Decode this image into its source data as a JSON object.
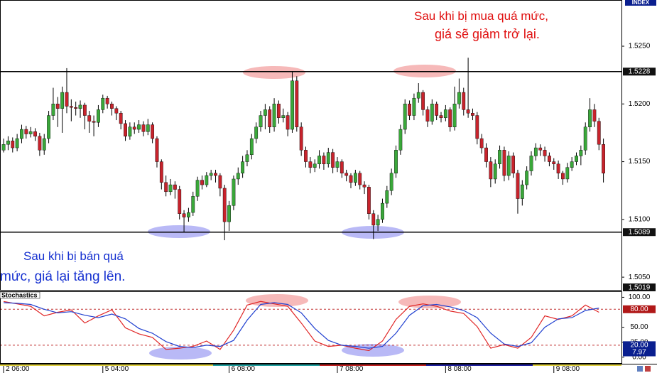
{
  "chart_data": [
    {
      "type": "candlestick",
      "index_label": "INDEX",
      "annotations": [
        "Sau khi bị mua quá mức,",
        "giá sẽ giảm trở lại.",
        "Sau khi bị bán quá",
        "mức, giá lại tăng lên."
      ],
      "up_color": "#3aa83a",
      "down_color": "#c8232c",
      "ylim": [
        1.5039,
        1.529
      ],
      "xlim": [
        -0.8,
        137
      ],
      "yticks": [
        {
          "value": 1.525,
          "label": "1.5250"
        },
        {
          "value": 1.52,
          "label": "1.5200"
        },
        {
          "value": 1.515,
          "label": "1.5150"
        },
        {
          "value": 1.51,
          "label": "1.5100"
        },
        {
          "value": 1.505,
          "label": "1.5050"
        }
      ],
      "levels": [
        1.5228,
        1.5089
      ],
      "current_price_label": "1.5019",
      "xticks": [
        {
          "value": 0,
          "label": "2 06:00"
        },
        {
          "value": 22,
          "label": "5 04:00"
        },
        {
          "value": 50,
          "label": "6 08:00"
        },
        {
          "value": 74,
          "label": "7 08:00"
        },
        {
          "value": 98,
          "label": "8 08:00"
        },
        {
          "value": 122,
          "label": "9 08:00"
        }
      ],
      "ohlc": [
        [
          1.516,
          1.517,
          1.5158,
          1.5165
        ],
        [
          1.5165,
          1.5172,
          1.516,
          1.5168
        ],
        [
          1.5168,
          1.5171,
          1.5158,
          1.5162
        ],
        [
          1.5162,
          1.5174,
          1.5159,
          1.517
        ],
        [
          1.517,
          1.5182,
          1.5166,
          1.5178
        ],
        [
          1.5178,
          1.5181,
          1.517,
          1.5174
        ],
        [
          1.5174,
          1.518,
          1.5171,
          1.5176
        ],
        [
          1.5176,
          1.5179,
          1.5168,
          1.5172
        ],
        [
          1.5172,
          1.5175,
          1.5155,
          1.516
        ],
        [
          1.516,
          1.5174,
          1.5156,
          1.517
        ],
        [
          1.517,
          1.5194,
          1.5166,
          1.519
        ],
        [
          1.519,
          1.5214,
          1.5186,
          1.52
        ],
        [
          1.52,
          1.5206,
          1.518,
          1.5196
        ],
        [
          1.5196,
          1.5215,
          1.5175,
          1.521
        ],
        [
          1.521,
          1.5231,
          1.5192,
          1.5198
        ],
        [
          1.5198,
          1.5204,
          1.5185,
          1.5197
        ],
        [
          1.5197,
          1.5202,
          1.519,
          1.5196
        ],
        [
          1.5196,
          1.5203,
          1.5188,
          1.5199
        ],
        [
          1.5199,
          1.5201,
          1.5178,
          1.519
        ],
        [
          1.519,
          1.5194,
          1.5175,
          1.5185
        ],
        [
          1.5185,
          1.519,
          1.5172,
          1.5184
        ],
        [
          1.5184,
          1.5199,
          1.518,
          1.5195
        ],
        [
          1.5195,
          1.5208,
          1.5192,
          1.5205
        ],
        [
          1.5205,
          1.5207,
          1.5196,
          1.52
        ],
        [
          1.52,
          1.5202,
          1.519,
          1.5196
        ],
        [
          1.5196,
          1.5198,
          1.5186,
          1.5192
        ],
        [
          1.5192,
          1.5194,
          1.5178,
          1.5183
        ],
        [
          1.5183,
          1.5186,
          1.5168,
          1.5172
        ],
        [
          1.5172,
          1.5184,
          1.5169,
          1.518
        ],
        [
          1.518,
          1.5184,
          1.5174,
          1.5178
        ],
        [
          1.5178,
          1.5186,
          1.5175,
          1.5182
        ],
        [
          1.5182,
          1.5185,
          1.5172,
          1.5176
        ],
        [
          1.5176,
          1.5187,
          1.5173,
          1.5182
        ],
        [
          1.5182,
          1.5184,
          1.5166,
          1.517
        ],
        [
          1.517,
          1.5172,
          1.5145,
          1.515
        ],
        [
          1.515,
          1.5152,
          1.5126,
          1.5132
        ],
        [
          1.5132,
          1.5138,
          1.512,
          1.5124
        ],
        [
          1.5124,
          1.5135,
          1.5121,
          1.513
        ],
        [
          1.513,
          1.5133,
          1.5118,
          1.5126
        ],
        [
          1.5126,
          1.5129,
          1.51,
          1.5105
        ],
        [
          1.5105,
          1.5108,
          1.5089,
          1.5102
        ],
        [
          1.5102,
          1.511,
          1.5098,
          1.5106
        ],
        [
          1.5106,
          1.5124,
          1.5103,
          1.512
        ],
        [
          1.512,
          1.5137,
          1.5116,
          1.5134
        ],
        [
          1.5134,
          1.5138,
          1.5126,
          1.513
        ],
        [
          1.513,
          1.5141,
          1.5128,
          1.5138
        ],
        [
          1.5138,
          1.5143,
          1.5134,
          1.514
        ],
        [
          1.514,
          1.5143,
          1.5132,
          1.5138
        ],
        [
          1.5138,
          1.514,
          1.512,
          1.5127
        ],
        [
          1.5127,
          1.513,
          1.5082,
          1.5098
        ],
        [
          1.5098,
          1.5116,
          1.509,
          1.5112
        ],
        [
          1.5112,
          1.5138,
          1.5108,
          1.5135
        ],
        [
          1.5135,
          1.5145,
          1.513,
          1.514
        ],
        [
          1.514,
          1.5155,
          1.5136,
          1.515
        ],
        [
          1.515,
          1.516,
          1.5146,
          1.5156
        ],
        [
          1.5156,
          1.5174,
          1.5152,
          1.517
        ],
        [
          1.517,
          1.5184,
          1.5166,
          1.518
        ],
        [
          1.518,
          1.5194,
          1.5176,
          1.519
        ],
        [
          1.519,
          1.52,
          1.5178,
          1.5195
        ],
        [
          1.5195,
          1.5198,
          1.5175,
          1.518
        ],
        [
          1.518,
          1.5205,
          1.5176,
          1.52
        ],
        [
          1.52,
          1.5203,
          1.5183,
          1.5188
        ],
        [
          1.5188,
          1.5196,
          1.5184,
          1.519
        ],
        [
          1.519,
          1.5193,
          1.5172,
          1.5178
        ],
        [
          1.5178,
          1.5228,
          1.5175,
          1.522
        ],
        [
          1.522,
          1.5224,
          1.5176,
          1.518
        ],
        [
          1.518,
          1.5184,
          1.5155,
          1.516
        ],
        [
          1.516,
          1.5163,
          1.5145,
          1.515
        ],
        [
          1.515,
          1.5154,
          1.514,
          1.5145
        ],
        [
          1.5145,
          1.5152,
          1.5141,
          1.5148
        ],
        [
          1.5148,
          1.516,
          1.5144,
          1.5155
        ],
        [
          1.5155,
          1.5158,
          1.5143,
          1.5148
        ],
        [
          1.5148,
          1.5162,
          1.5145,
          1.5158
        ],
        [
          1.5158,
          1.5161,
          1.514,
          1.5145
        ],
        [
          1.5145,
          1.5154,
          1.5141,
          1.515
        ],
        [
          1.515,
          1.5152,
          1.5136,
          1.514
        ],
        [
          1.514,
          1.5143,
          1.5133,
          1.5138
        ],
        [
          1.5138,
          1.514,
          1.5127,
          1.5132
        ],
        [
          1.5132,
          1.5143,
          1.5129,
          1.514
        ],
        [
          1.514,
          1.5142,
          1.5126,
          1.513
        ],
        [
          1.513,
          1.5133,
          1.5122,
          1.5128
        ],
        [
          1.5128,
          1.513,
          1.51,
          1.5105
        ],
        [
          1.5105,
          1.5108,
          1.5083,
          1.5095
        ],
        [
          1.5095,
          1.5104,
          1.509,
          1.51
        ],
        [
          1.51,
          1.5118,
          1.5097,
          1.5114
        ],
        [
          1.5114,
          1.5129,
          1.511,
          1.5125
        ],
        [
          1.5125,
          1.5144,
          1.5121,
          1.514
        ],
        [
          1.514,
          1.5164,
          1.5136,
          1.516
        ],
        [
          1.516,
          1.5182,
          1.5156,
          1.5178
        ],
        [
          1.5178,
          1.5204,
          1.5174,
          1.52
        ],
        [
          1.52,
          1.5203,
          1.5186,
          1.519
        ],
        [
          1.519,
          1.5209,
          1.5186,
          1.5205
        ],
        [
          1.5205,
          1.5218,
          1.5201,
          1.521
        ],
        [
          1.521,
          1.5212,
          1.519,
          1.5195
        ],
        [
          1.5195,
          1.5198,
          1.518,
          1.5185
        ],
        [
          1.5185,
          1.5204,
          1.5182,
          1.52
        ],
        [
          1.52,
          1.5202,
          1.5186,
          1.519
        ],
        [
          1.519,
          1.5193,
          1.5184,
          1.5188
        ],
        [
          1.5188,
          1.5199,
          1.5185,
          1.5195
        ],
        [
          1.5195,
          1.5197,
          1.5176,
          1.518
        ],
        [
          1.518,
          1.5215,
          1.5177,
          1.52
        ],
        [
          1.52,
          1.5222,
          1.5196,
          1.521
        ],
        [
          1.521,
          1.5214,
          1.519,
          1.5195
        ],
        [
          1.5195,
          1.524,
          1.5188,
          1.5192
        ],
        [
          1.5192,
          1.5196,
          1.5186,
          1.519
        ],
        [
          1.519,
          1.5193,
          1.5165,
          1.517
        ],
        [
          1.517,
          1.5174,
          1.5157,
          1.5162
        ],
        [
          1.5162,
          1.5166,
          1.5145,
          1.515
        ],
        [
          1.515,
          1.5154,
          1.5128,
          1.5135
        ],
        [
          1.5135,
          1.5152,
          1.5131,
          1.5148
        ],
        [
          1.5148,
          1.5164,
          1.5144,
          1.516
        ],
        [
          1.516,
          1.5163,
          1.5133,
          1.5138
        ],
        [
          1.5138,
          1.5159,
          1.5134,
          1.5155
        ],
        [
          1.5155,
          1.5158,
          1.5136,
          1.514
        ],
        [
          1.514,
          1.5143,
          1.5105,
          1.5118
        ],
        [
          1.5118,
          1.5134,
          1.5112,
          1.513
        ],
        [
          1.513,
          1.5146,
          1.5126,
          1.5142
        ],
        [
          1.5142,
          1.5159,
          1.5138,
          1.5155
        ],
        [
          1.5155,
          1.5166,
          1.5151,
          1.5162
        ],
        [
          1.5162,
          1.5165,
          1.5155,
          1.516
        ],
        [
          1.516,
          1.5163,
          1.515,
          1.5155
        ],
        [
          1.5155,
          1.5158,
          1.5146,
          1.515
        ],
        [
          1.515,
          1.5153,
          1.5143,
          1.5148
        ],
        [
          1.5148,
          1.5151,
          1.5135,
          1.514
        ],
        [
          1.514,
          1.5142,
          1.513,
          1.5135
        ],
        [
          1.5135,
          1.5149,
          1.5132,
          1.5145
        ],
        [
          1.5145,
          1.5154,
          1.5142,
          1.515
        ],
        [
          1.515,
          1.5158,
          1.5147,
          1.5155
        ],
        [
          1.5155,
          1.5164,
          1.5147,
          1.516
        ],
        [
          1.516,
          1.5184,
          1.5156,
          1.518
        ],
        [
          1.518,
          1.5205,
          1.5176,
          1.5195
        ],
        [
          1.5195,
          1.52,
          1.518,
          1.5185
        ],
        [
          1.5185,
          1.5188,
          1.516,
          1.5165
        ],
        [
          1.5165,
          1.517,
          1.5132,
          1.514
        ]
      ]
    },
    {
      "type": "line",
      "title": "Stochastics",
      "xlim": [
        -0.8,
        137
      ],
      "ylim": [
        -11,
        110
      ],
      "yticks": [
        {
          "value": 100,
          "label": "100.00"
        },
        {
          "value": 50,
          "label": "50.00"
        },
        {
          "value": 25,
          "label": "25.00"
        },
        {
          "value": 0,
          "label": "0.00"
        }
      ],
      "levels": [
        {
          "value": 80,
          "label": "80.00",
          "color": "#b01818"
        },
        {
          "value": 20,
          "label": "20.00",
          "color": "#0a1f8f"
        }
      ],
      "current_value": {
        "value": 7.97,
        "label": "7.97",
        "color": "#0a1f8f"
      },
      "x": [
        0,
        3,
        6,
        9,
        12,
        15,
        18,
        21,
        24,
        27,
        30,
        33,
        36,
        39,
        42,
        45,
        48,
        51,
        54,
        57,
        60,
        63,
        66,
        69,
        72,
        75,
        78,
        81,
        84,
        87,
        90,
        93,
        96,
        99,
        102,
        105,
        108,
        111,
        114,
        117,
        120,
        123,
        126,
        129,
        132
      ],
      "series": [
        {
          "color": "#e02525",
          "values": [
            93,
            89,
            85,
            69,
            75,
            79,
            57,
            69,
            79,
            49,
            39,
            33,
            13,
            15,
            18,
            27,
            13,
            45,
            87,
            93,
            89,
            85,
            57,
            27,
            18,
            20,
            15,
            11,
            27,
            63,
            85,
            89,
            85,
            77,
            73,
            51,
            15,
            21,
            15,
            33,
            69,
            63,
            69,
            87,
            75
          ]
        },
        {
          "color": "#2040d0",
          "values": [
            91,
            90,
            88,
            80,
            74,
            76,
            70,
            66,
            72,
            64,
            48,
            40,
            26,
            18,
            16,
            20,
            18,
            28,
            62,
            88,
            91,
            88,
            74,
            48,
            28,
            20,
            18,
            15,
            18,
            40,
            70,
            86,
            88,
            84,
            78,
            66,
            40,
            22,
            18,
            24,
            50,
            64,
            66,
            78,
            82
          ]
        }
      ]
    }
  ]
}
